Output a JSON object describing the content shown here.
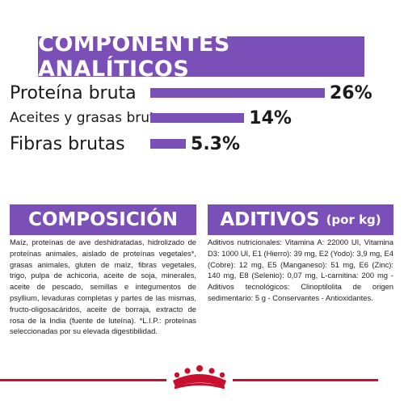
{
  "analysis": {
    "title": "COMPONENTES ANALÍTICOS",
    "items": [
      {
        "label": "Proteína bruta",
        "value": "26%",
        "percent": 26
      },
      {
        "label": "Aceites y grasas brutos",
        "value": "14%",
        "percent": 14
      },
      {
        "label": "Fibras brutas",
        "value": "5.3%",
        "percent": 5.3
      }
    ]
  },
  "composition": {
    "title": "COMPOSICIÓN",
    "text": "Maíz, proteínas de ave deshidratadas, hidrolizado de proteínas animales, aislado de proteínas vegetales*, grasas animales, gluten de maíz, fibras vegetales, trigo, pulpa de achicoria, aceite de soja, minerales, aceite de pescado, semillas e integumentos de psyllium, levaduras completas y partes de las mismas, fructo-oligosacáridos, aceite de borraja, extracto de rosa de la India (fuente de luteína). *L.I.P.: proteínas seleccionadas por su elevada digestibilidad."
  },
  "additives": {
    "title": "ADITIVOS",
    "unit": "(por kg)",
    "text": "Aditivos nutricionales: Vitamina A: 22000 UI, Vitamina D3: 1000 UI, E1 (Hierro): 39 mg, E2 (Yodo): 3,9 mg, E4 (Cobre): 12 mg, E5 (Manganeso): 51 mg, E6 (Zinc): 140 mg, E8 (Selenio): 0,07 mg, L-carnitina: 200 mg - Aditivos tecnológicos: Clinoptilolita de origen sedimentario: 5 g - Conservantes - Antioxidantes."
  },
  "colors": {
    "accent": "#7b4fb8",
    "brand_red": "#c8102e"
  },
  "logo": {
    "icon": "royal-canin-crown-icon"
  }
}
